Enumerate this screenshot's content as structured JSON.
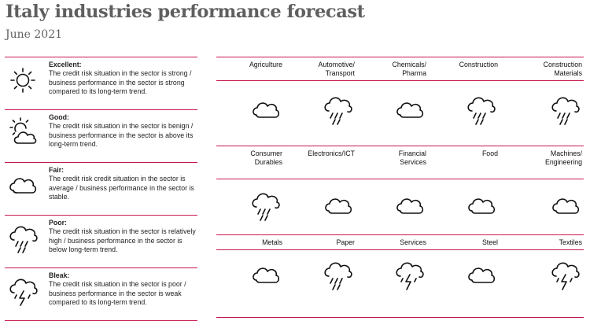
{
  "title": "Italy industries performance forecast",
  "subtitle": "June 2021",
  "colors": {
    "accent": "#c8184b",
    "title": "#5f5f5f"
  },
  "legend": [
    {
      "name": "Excellent:",
      "icon": "sun-icon",
      "text": "The credit risk situation in the sector is strong / business performance in the sector is strong compared to its long-term trend."
    },
    {
      "name": "Good:",
      "icon": "sun-cloud-icon",
      "text": "The credit risk situation in the sector is benign / business performance in the sector is above its long-term trend."
    },
    {
      "name": "Fair:",
      "icon": "cloud-icon",
      "text": "The credit risk credit situation in the sector is average / business performance in the sector is stable."
    },
    {
      "name": "Poor:",
      "icon": "rain-cloud-icon",
      "text": "The credit risk situation in the sector is relatively high / business performance in the sector is below long-term trend."
    },
    {
      "name": "Bleak:",
      "icon": "storm-cloud-icon",
      "text": "The credit risk situation in the sector is poor / business performance in the sector is weak compared to its long-term trend."
    }
  ],
  "industries": [
    {
      "name": "Agriculture",
      "rating": "Fair",
      "icon": "cloud-icon"
    },
    {
      "name": "Automotive/ Transport",
      "rating": "Poor",
      "icon": "rain-cloud-icon"
    },
    {
      "name": "Chemicals/ Pharma",
      "rating": "Fair",
      "icon": "cloud-icon"
    },
    {
      "name": "Construction",
      "rating": "Poor",
      "icon": "rain-cloud-icon"
    },
    {
      "name": "Construction Materials",
      "rating": "Poor",
      "icon": "rain-cloud-icon"
    },
    {
      "name": "Consumer Durables",
      "rating": "Poor",
      "icon": "rain-cloud-icon"
    },
    {
      "name": "Electronics/ICT",
      "rating": "Fair",
      "icon": "cloud-icon"
    },
    {
      "name": "Financial Services",
      "rating": "Fair",
      "icon": "cloud-icon"
    },
    {
      "name": "Food",
      "rating": "Fair",
      "icon": "cloud-icon"
    },
    {
      "name": "Machines/ Engineering",
      "rating": "Fair",
      "icon": "cloud-icon"
    },
    {
      "name": "Metals",
      "rating": "Fair",
      "icon": "cloud-icon"
    },
    {
      "name": "Paper",
      "rating": "Poor",
      "icon": "rain-cloud-icon"
    },
    {
      "name": "Services",
      "rating": "Bleak",
      "icon": "storm-cloud-icon"
    },
    {
      "name": "Steel",
      "rating": "Fair",
      "icon": "cloud-icon"
    },
    {
      "name": "Textiles",
      "rating": "Bleak",
      "icon": "storm-cloud-icon"
    }
  ]
}
